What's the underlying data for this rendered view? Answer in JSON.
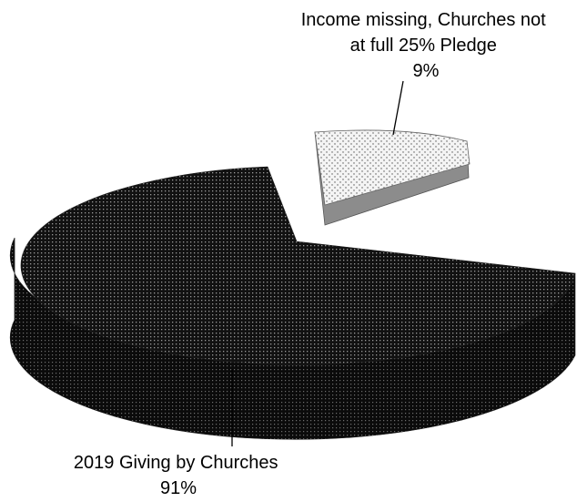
{
  "chart_data": {
    "type": "pie",
    "style": "3d-exploded",
    "title": "",
    "slices": [
      {
        "label_lines": [
          "Income missing, Churches not",
          "at full 25% Pledge"
        ],
        "percent_label": "9%",
        "value": 9,
        "exploded": true,
        "fill": "light-dotted"
      },
      {
        "label_lines": [
          "2019 Giving by Churches"
        ],
        "percent_label": "91%",
        "value": 91,
        "exploded": false,
        "fill": "dark-dotted"
      }
    ],
    "colors": {
      "dark_fill": "#111111",
      "dark_dot": "#9a9a9a",
      "light_fill": "#f4f4f4",
      "light_dot": "#555555",
      "light_side": "#8c8c8c"
    }
  }
}
